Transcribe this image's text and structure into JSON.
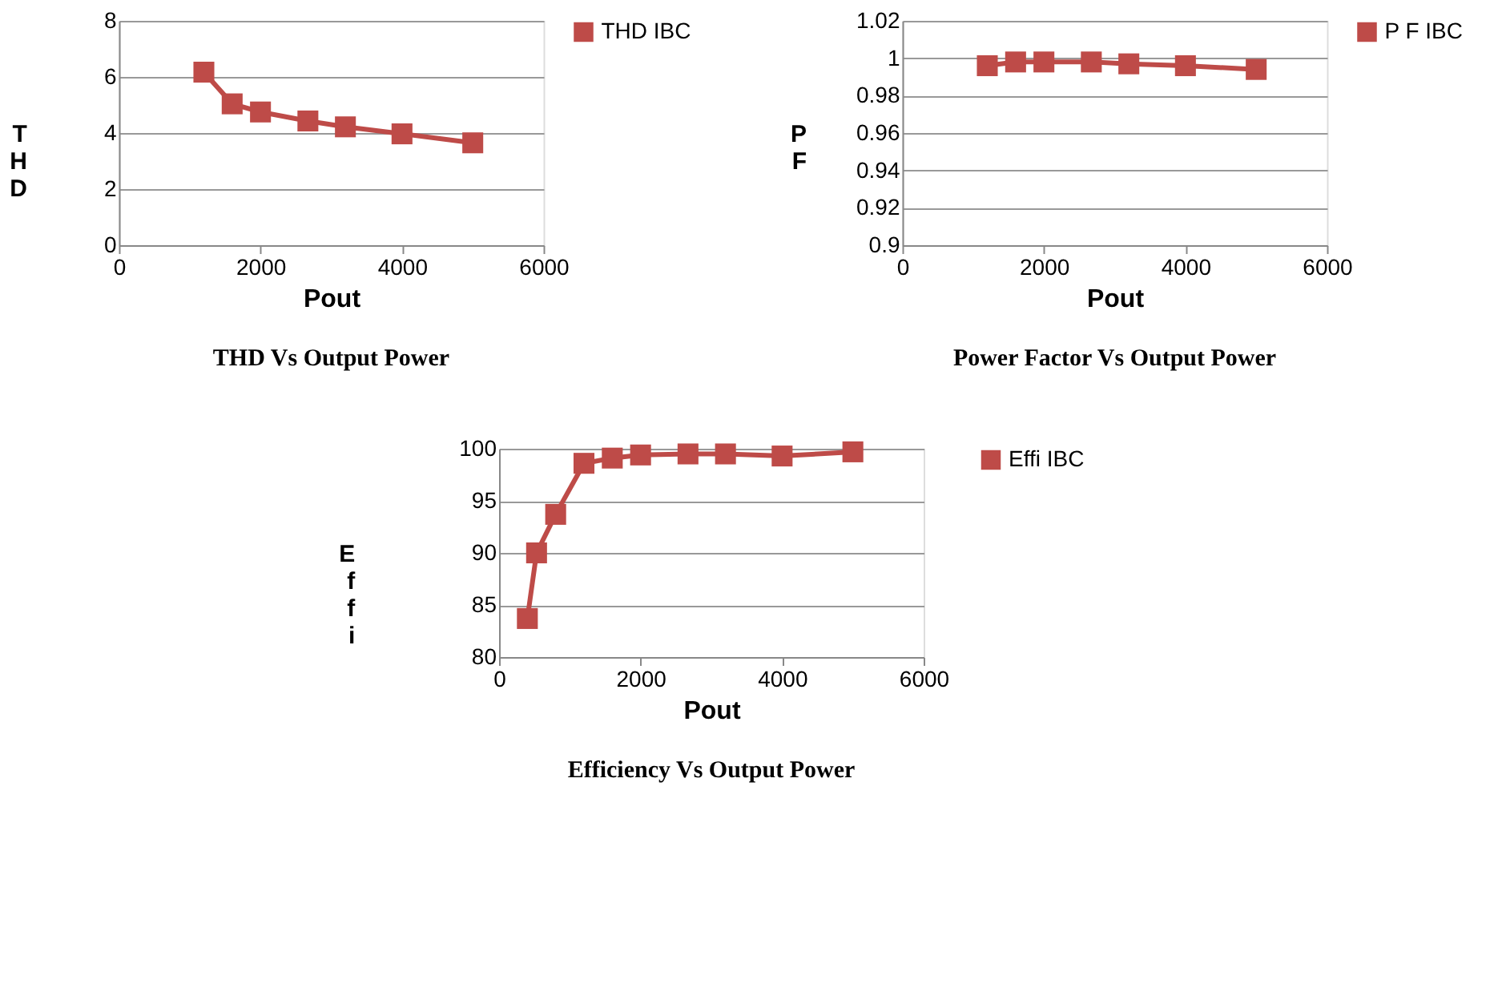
{
  "chart_data": [
    {
      "type": "line",
      "title": "THD Vs Output Power",
      "xlabel": "Pout",
      "ylabel": "THD",
      "x": [
        1200,
        1600,
        2000,
        2670,
        3200,
        4000,
        5000
      ],
      "series": [
        {
          "name": "THD IBC",
          "color": "#be4b48",
          "values": [
            6.17,
            5.04,
            4.75,
            4.43,
            4.22,
            3.97,
            3.65
          ]
        }
      ],
      "xlim": [
        0,
        6000
      ],
      "xticks": [
        0,
        2000,
        4000,
        6000
      ],
      "ylim": [
        0,
        8
      ],
      "yticks": [
        0,
        2,
        4,
        6,
        8
      ],
      "grid": "y",
      "legend": "right",
      "marker": "square",
      "line_style": "solid"
    },
    {
      "type": "line",
      "title": "Power Factor Vs Output Power",
      "xlabel": "Pout",
      "ylabel": "PF",
      "x": [
        1200,
        1600,
        2000,
        2670,
        3200,
        4000,
        5000
      ],
      "series": [
        {
          "name": "P F IBC",
          "color": "#be4b48",
          "values": [
            0.996,
            0.998,
            0.998,
            0.998,
            0.997,
            0.996,
            0.994
          ]
        }
      ],
      "xlim": [
        0,
        6000
      ],
      "xticks": [
        0,
        2000,
        4000,
        6000
      ],
      "ylim": [
        0.9,
        1.02
      ],
      "yticks": [
        0.9,
        0.92,
        0.94,
        0.96,
        0.98,
        1,
        1.02
      ],
      "grid": "y",
      "legend": "right",
      "marker": "square",
      "line_style": "solid"
    },
    {
      "type": "line",
      "title": "Efficiency Vs Output Power",
      "xlabel": "Pout",
      "ylabel": "Effi",
      "x": [
        400,
        530,
        800,
        1200,
        1600,
        2000,
        2670,
        3200,
        4000,
        5000
      ],
      "series": [
        {
          "name": "Effi IBC",
          "color": "#be4b48",
          "values": [
            83.7,
            90.0,
            93.7,
            98.6,
            99.1,
            99.4,
            99.5,
            99.5,
            99.3,
            99.7
          ]
        }
      ],
      "xlim": [
        0,
        6000
      ],
      "xticks": [
        0,
        2000,
        4000,
        6000
      ],
      "ylim": [
        80,
        100
      ],
      "yticks": [
        80,
        85,
        90,
        95,
        100
      ],
      "grid": "y",
      "legend": "right",
      "marker": "square",
      "line_style": "solid"
    }
  ]
}
